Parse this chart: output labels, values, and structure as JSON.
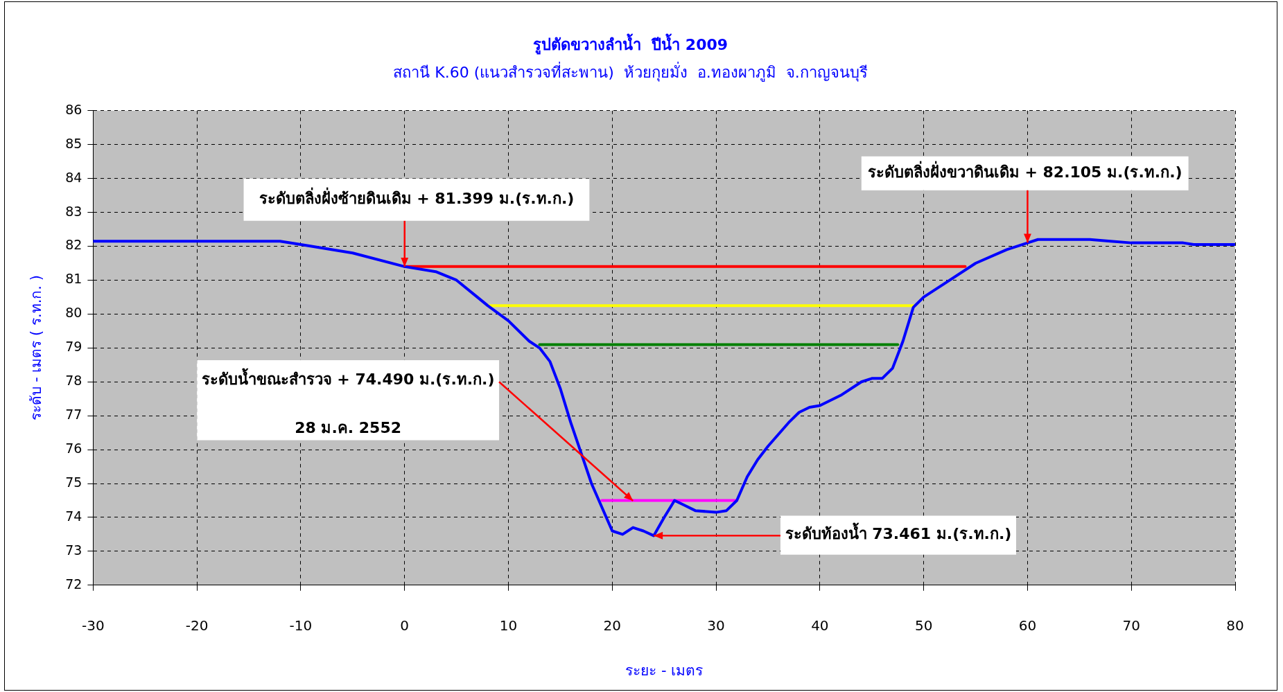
{
  "chart_data": {
    "type": "line",
    "title": "รูปตัดขวางลำน้ำ  ปีน้ำ 2009",
    "subtitle": "สถานี K.60 (แนวสำรวจที่สะพาน)  ห้วยกุยมั่ง  อ.ทองผาภูมิ  จ.กาญจนบุรี",
    "xlabel": "ระยะ - เมตร",
    "ylabel": "ระดับ - เมตร ( ร.ท.ก. )",
    "xlim": [
      -30,
      80
    ],
    "xticks": [
      -30,
      -20,
      -10,
      0,
      10,
      20,
      30,
      40,
      50,
      60,
      70,
      80
    ],
    "ylim": [
      72,
      86
    ],
    "yticks": [
      72,
      73,
      74,
      75,
      76,
      77,
      78,
      79,
      80,
      81,
      82,
      83,
      84,
      85,
      86
    ],
    "grid": true,
    "legend": false,
    "marker": "none",
    "line_style": "solid",
    "series": [
      {
        "color": "#0000ff",
        "x": [
          -30,
          -12,
          -10,
          -5,
          0,
          3,
          5,
          7,
          8,
          10,
          12,
          13,
          14,
          15,
          16,
          17,
          18,
          19,
          20,
          21,
          22,
          23,
          24,
          25,
          26,
          27,
          28,
          30,
          31,
          32,
          33,
          34,
          35,
          37,
          38,
          39,
          40,
          42,
          44,
          45,
          46,
          47,
          48,
          49,
          50,
          52,
          55,
          58,
          60,
          61,
          66,
          68,
          70,
          75,
          76,
          80
        ],
        "values": [
          82.15,
          82.15,
          82.05,
          81.8,
          81.4,
          81.25,
          81.0,
          80.5,
          80.25,
          79.8,
          79.2,
          79.0,
          78.6,
          77.8,
          76.8,
          75.9,
          75.0,
          74.3,
          73.6,
          73.5,
          73.7,
          73.6,
          73.46,
          74.0,
          74.5,
          74.35,
          74.2,
          74.15,
          74.2,
          74.5,
          75.2,
          75.7,
          76.1,
          76.8,
          77.1,
          77.25,
          77.3,
          77.6,
          78.0,
          78.1,
          78.1,
          78.4,
          79.2,
          80.2,
          80.5,
          80.9,
          81.5,
          81.9,
          82.1,
          82.2,
          82.2,
          82.15,
          82.1,
          82.1,
          82.05,
          82.05
        ]
      },
      {
        "color": "#ff0000",
        "x": [
          0,
          54
        ],
        "values": [
          81.4,
          81.4
        ]
      },
      {
        "color": "#ffff00",
        "x": [
          8,
          49
        ],
        "values": [
          80.25,
          80.25
        ]
      },
      {
        "color": "#008000",
        "x": [
          13,
          47.5
        ],
        "values": [
          79.1,
          79.1
        ]
      },
      {
        "color": "#ff00ff",
        "x": [
          19,
          32
        ],
        "values": [
          74.5,
          74.5
        ]
      }
    ],
    "annotations": [
      {
        "text": "ระดับตลิ่งฝั่งซ้ายดินเดิม + 81.399 ม.(ร.ท.ก.)",
        "x": 0,
        "y": 81.399
      },
      {
        "text": "ระดับตลิ่งฝั่งขวาดินเดิม + 82.105 ม.(ร.ท.ก.)",
        "x": 60,
        "y": 82.105
      },
      {
        "text": "ระดับน้ำขณะสำรวจ + 74.490 ม.(ร.ท.ก.)",
        "x": 22,
        "y": 74.49
      },
      "28 ม.ค. 2552",
      {
        "text": "ระดับท้องน้ำ 73.461 ม.(ร.ท.ก.)",
        "x": 24,
        "y": 73.461
      }
    ]
  }
}
